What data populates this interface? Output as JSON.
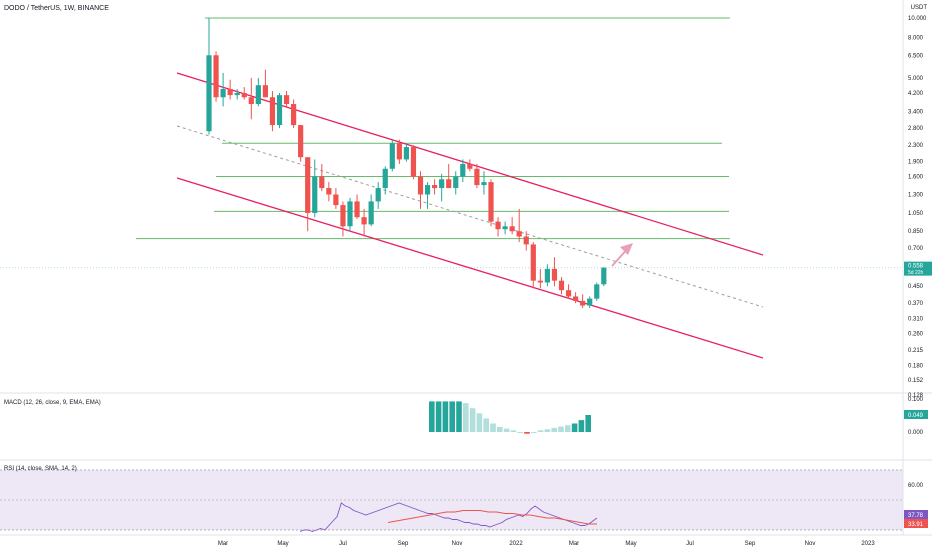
{
  "header": {
    "symbol_title": "DODO / TetherUS, 1W, BINANCE",
    "currency": "USDT"
  },
  "colors": {
    "up": "#26a69a",
    "down": "#ef5350",
    "hline": "#66bb6a",
    "channel": "#e91e63",
    "midline": "#9e9e9e",
    "arrow": "#e9a0b4",
    "macd_strong": "#26a69a",
    "macd_light": "#b2dfdb",
    "rsi_line": "#7e57c2",
    "rsi_ma": "#ef5350",
    "rsi_band": "#ede7f6"
  },
  "chart_data": [
    {
      "type": "candlestick",
      "scale": "log",
      "y_ticks": [
        "10.000",
        "8.000",
        "6.500",
        "5.000",
        "4.200",
        "3.400",
        "2.800",
        "2.300",
        "1.900",
        "1.600",
        "1.300",
        "1.050",
        "0.850",
        "0.700",
        "0.558",
        "0.450",
        "0.370",
        "0.310",
        "0.260",
        "0.215",
        "0.180",
        "0.152",
        "0.128"
      ],
      "x_ticks": [
        "Mar",
        "May",
        "Jul",
        "Sep",
        "Nov",
        "2022",
        "Mar",
        "May",
        "Jul",
        "Sep",
        "Nov",
        "2023"
      ],
      "last_price": "0.558",
      "countdown": "5d 22h",
      "horizontal_levels": [
        10.0,
        2.35,
        1.6,
        1.07,
        0.78
      ],
      "candles": [
        {
          "o": 2.7,
          "h": 10.0,
          "l": 2.6,
          "c": 6.5
        },
        {
          "o": 6.5,
          "h": 6.8,
          "l": 3.8,
          "c": 4.0
        },
        {
          "o": 4.0,
          "h": 5.3,
          "l": 3.6,
          "c": 4.4
        },
        {
          "o": 4.4,
          "h": 4.9,
          "l": 3.9,
          "c": 4.1
        },
        {
          "o": 4.1,
          "h": 4.4,
          "l": 3.9,
          "c": 4.2
        },
        {
          "o": 4.2,
          "h": 4.5,
          "l": 3.9,
          "c": 4.0
        },
        {
          "o": 4.0,
          "h": 5.0,
          "l": 3.1,
          "c": 3.7
        },
        {
          "o": 3.7,
          "h": 5.0,
          "l": 3.6,
          "c": 4.6
        },
        {
          "o": 4.6,
          "h": 5.5,
          "l": 4.0,
          "c": 4.0
        },
        {
          "o": 4.0,
          "h": 4.3,
          "l": 2.7,
          "c": 2.9
        },
        {
          "o": 2.9,
          "h": 4.2,
          "l": 2.8,
          "c": 4.1
        },
        {
          "o": 4.1,
          "h": 4.3,
          "l": 3.6,
          "c": 3.7
        },
        {
          "o": 3.7,
          "h": 3.9,
          "l": 2.8,
          "c": 2.9
        },
        {
          "o": 2.9,
          "h": 2.9,
          "l": 1.9,
          "c": 2.0
        },
        {
          "o": 2.0,
          "h": 2.0,
          "l": 0.85,
          "c": 1.05
        },
        {
          "o": 1.05,
          "h": 1.95,
          "l": 1.0,
          "c": 1.6
        },
        {
          "o": 1.6,
          "h": 1.85,
          "l": 1.35,
          "c": 1.4
        },
        {
          "o": 1.4,
          "h": 1.5,
          "l": 1.2,
          "c": 1.3
        },
        {
          "o": 1.3,
          "h": 1.4,
          "l": 1.1,
          "c": 1.15
        },
        {
          "o": 1.15,
          "h": 1.2,
          "l": 0.8,
          "c": 0.9
        },
        {
          "o": 0.9,
          "h": 1.25,
          "l": 0.85,
          "c": 1.2
        },
        {
          "o": 1.2,
          "h": 1.3,
          "l": 0.98,
          "c": 1.0
        },
        {
          "o": 1.0,
          "h": 1.1,
          "l": 0.8,
          "c": 0.92
        },
        {
          "o": 0.92,
          "h": 1.3,
          "l": 0.9,
          "c": 1.2
        },
        {
          "o": 1.2,
          "h": 1.5,
          "l": 1.1,
          "c": 1.4
        },
        {
          "o": 1.4,
          "h": 1.8,
          "l": 1.3,
          "c": 1.75
        },
        {
          "o": 1.75,
          "h": 2.45,
          "l": 1.7,
          "c": 2.35
        },
        {
          "o": 2.35,
          "h": 2.45,
          "l": 1.85,
          "c": 1.95
        },
        {
          "o": 1.95,
          "h": 2.35,
          "l": 1.9,
          "c": 2.25
        },
        {
          "o": 2.25,
          "h": 2.3,
          "l": 1.55,
          "c": 1.6
        },
        {
          "o": 1.6,
          "h": 1.7,
          "l": 1.1,
          "c": 1.3
        },
        {
          "o": 1.3,
          "h": 1.5,
          "l": 1.1,
          "c": 1.45
        },
        {
          "o": 1.45,
          "h": 1.55,
          "l": 1.3,
          "c": 1.4
        },
        {
          "o": 1.4,
          "h": 1.65,
          "l": 1.2,
          "c": 1.55
        },
        {
          "o": 1.55,
          "h": 1.85,
          "l": 1.4,
          "c": 1.4
        },
        {
          "o": 1.4,
          "h": 1.7,
          "l": 1.3,
          "c": 1.6
        },
        {
          "o": 1.6,
          "h": 1.95,
          "l": 1.5,
          "c": 1.85
        },
        {
          "o": 1.85,
          "h": 1.95,
          "l": 1.7,
          "c": 1.75
        },
        {
          "o": 1.75,
          "h": 1.85,
          "l": 1.4,
          "c": 1.45
        },
        {
          "o": 1.45,
          "h": 1.7,
          "l": 1.3,
          "c": 1.5
        },
        {
          "o": 1.5,
          "h": 1.55,
          "l": 0.9,
          "c": 0.95
        },
        {
          "o": 0.95,
          "h": 1.0,
          "l": 0.8,
          "c": 0.87
        },
        {
          "o": 0.87,
          "h": 0.95,
          "l": 0.82,
          "c": 0.9
        },
        {
          "o": 0.9,
          "h": 1.0,
          "l": 0.82,
          "c": 0.85
        },
        {
          "o": 0.85,
          "h": 1.1,
          "l": 0.75,
          "c": 0.8
        },
        {
          "o": 0.8,
          "h": 0.85,
          "l": 0.68,
          "c": 0.73
        },
        {
          "o": 0.73,
          "h": 0.75,
          "l": 0.44,
          "c": 0.48
        },
        {
          "o": 0.48,
          "h": 0.55,
          "l": 0.44,
          "c": 0.47
        },
        {
          "o": 0.47,
          "h": 0.58,
          "l": 0.45,
          "c": 0.55
        },
        {
          "o": 0.55,
          "h": 0.63,
          "l": 0.45,
          "c": 0.48
        },
        {
          "o": 0.48,
          "h": 0.5,
          "l": 0.41,
          "c": 0.43
        },
        {
          "o": 0.43,
          "h": 0.46,
          "l": 0.39,
          "c": 0.4
        },
        {
          "o": 0.4,
          "h": 0.42,
          "l": 0.37,
          "c": 0.38
        },
        {
          "o": 0.38,
          "h": 0.41,
          "l": 0.35,
          "c": 0.36
        },
        {
          "o": 0.36,
          "h": 0.4,
          "l": 0.35,
          "c": 0.39
        },
        {
          "o": 0.39,
          "h": 0.47,
          "l": 0.38,
          "c": 0.46
        },
        {
          "o": 0.46,
          "h": 0.56,
          "l": 0.45,
          "c": 0.558
        }
      ]
    },
    {
      "type": "bar",
      "title": "MACD (12, 26, close, 9, EMA, EMA)",
      "y_ticks": [
        "0.100",
        "0.000"
      ],
      "current_value": "0.049",
      "values": [
        0.09,
        0.09,
        0.09,
        0.09,
        0.09,
        0.085,
        0.07,
        0.055,
        0.04,
        0.025,
        0.015,
        0.01,
        0.005,
        0.0,
        -0.005,
        0.0,
        0.005,
        0.008,
        0.012,
        0.016,
        0.02,
        0.025,
        0.035,
        0.05
      ]
    },
    {
      "type": "line",
      "title": "RSI (14, close, SMA, 14, 2)",
      "y_ticks": [
        "60.00"
      ],
      "rsi_value": "37.78",
      "ma_value": "33.91",
      "rsi": [
        29,
        30,
        30,
        29,
        30,
        31,
        30,
        33,
        36,
        39,
        48,
        46,
        45,
        43,
        42,
        41,
        40,
        41,
        42,
        43,
        44,
        45,
        46,
        47,
        48,
        47,
        46,
        45,
        44,
        43,
        42,
        41,
        41,
        40,
        39,
        38,
        38,
        37,
        37,
        36,
        35,
        35,
        34,
        34,
        33,
        33,
        32,
        33,
        34,
        35,
        37,
        38,
        39,
        40,
        39,
        41,
        44,
        46,
        44,
        42,
        41,
        40,
        39,
        38,
        37,
        36,
        35,
        34,
        33,
        33,
        34,
        36,
        38
      ],
      "ma": [
        35,
        36,
        37,
        38,
        39,
        40,
        41,
        42,
        42,
        43,
        43,
        43,
        42,
        42,
        41,
        41,
        40,
        40,
        39,
        38,
        38,
        37,
        36,
        35,
        34,
        34
      ]
    }
  ]
}
